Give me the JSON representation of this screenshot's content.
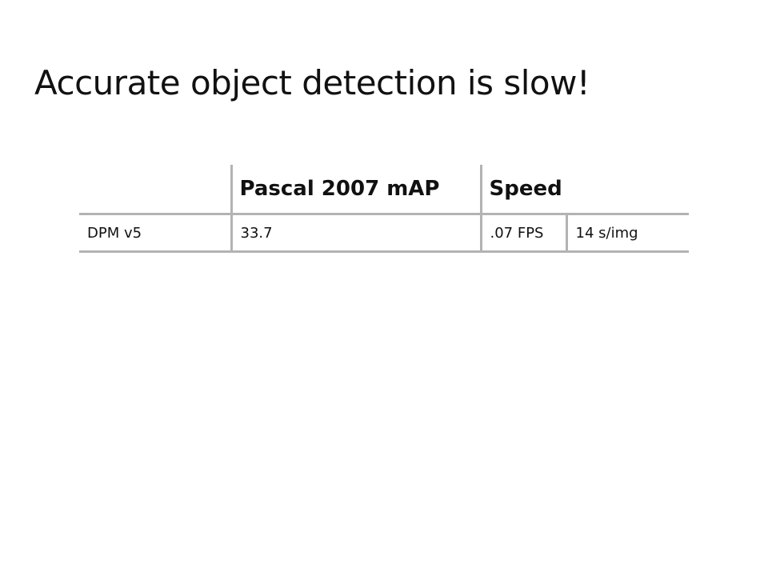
{
  "slide": {
    "title": "Accurate object detection is slow!"
  },
  "table": {
    "headers": [
      "",
      "Pascal 2007 mAP",
      "Speed"
    ],
    "rows": [
      {
        "method": "DPM v5",
        "map": "33.7",
        "fps": ".07 FPS",
        "time_per_image": "14 s/img"
      }
    ]
  }
}
